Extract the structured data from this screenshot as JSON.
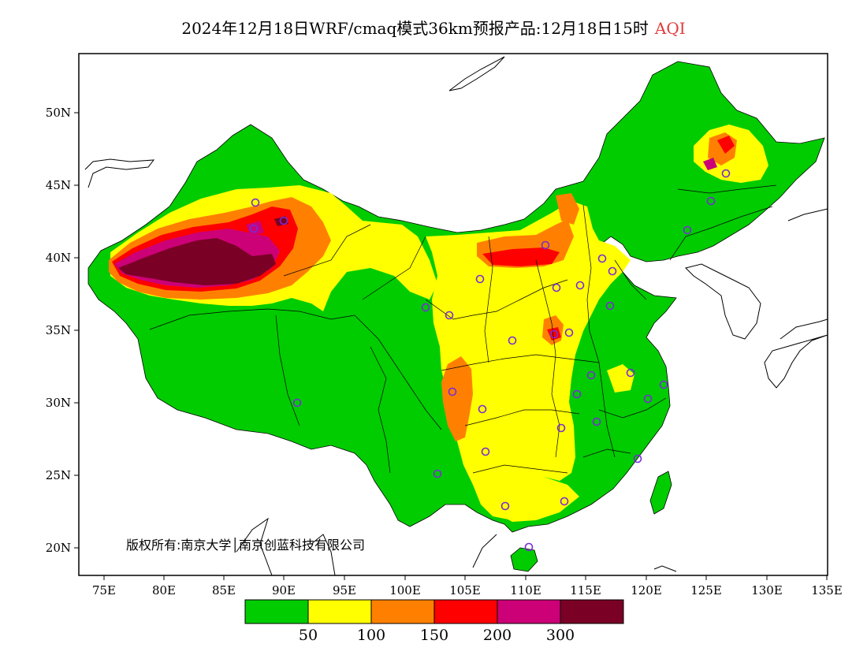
{
  "title": {
    "main": "2024年12月18日WRF/cmaq模式36km预报产品:12月18日15时",
    "variable": "AQI"
  },
  "copyright": "版权所有:南京大学│南京创蓝科技有限公司",
  "axes": {
    "lat_labels": [
      "50N",
      "45N",
      "40N",
      "35N",
      "30N",
      "25N",
      "20N"
    ],
    "lon_labels": [
      "75E",
      "80E",
      "85E",
      "90E",
      "95E",
      "100E",
      "105E",
      "110E",
      "115E",
      "120E",
      "125E",
      "130E",
      "135E"
    ]
  },
  "legend": {
    "colors": [
      "#00cc00",
      "#ffff00",
      "#ff8000",
      "#ff0000",
      "#cc0077",
      "#7a0025"
    ],
    "labels": [
      "50",
      "100",
      "150",
      "200",
      "300"
    ]
  },
  "colors": {
    "land_outside": "#ffffff",
    "border": "#000000",
    "station_marker": "#7a2bd6"
  }
}
